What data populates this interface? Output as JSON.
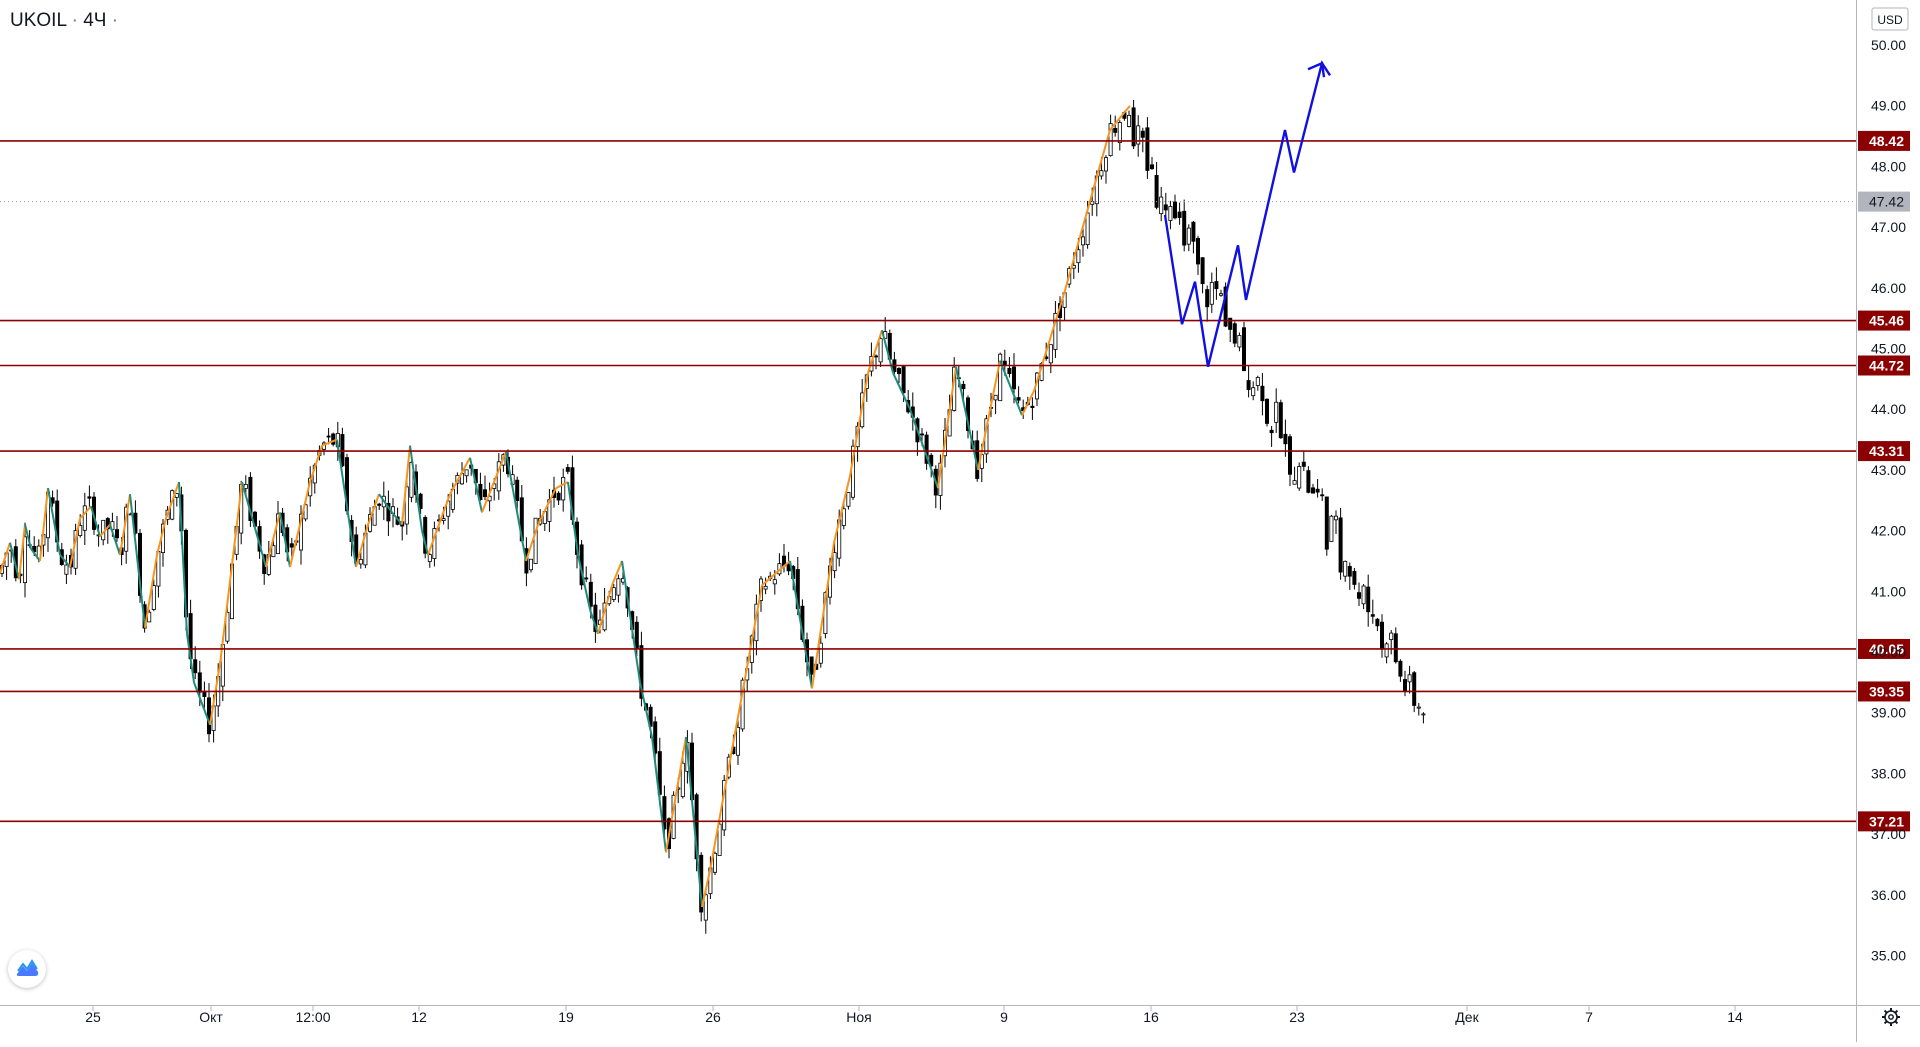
{
  "header": {
    "symbol": "UKOIL",
    "separator": "·",
    "interval": "4Ч",
    "dot": "·"
  },
  "currency": "USD",
  "settings_icon": "gear-icon",
  "logo_icon": "tradingview-logo-icon",
  "chart_data": {
    "type": "candlestick",
    "ylim": [
      34.6,
      50.6
    ],
    "y_ticks": [
      "35.00",
      "36.00",
      "37.00",
      "38.00",
      "39.00",
      "40.00",
      "41.00",
      "42.00",
      "43.00",
      "44.00",
      "45.00",
      "46.00",
      "47.00",
      "48.00",
      "49.00",
      "50.00"
    ],
    "x_ticks": [
      "25",
      "Окт",
      "12:00",
      "12",
      "19",
      "26",
      "Ноя",
      "9",
      "16",
      "23",
      "Дек",
      "7",
      "14"
    ],
    "current_price": "47.42",
    "levels": [
      "48.42",
      "45.46",
      "44.72",
      "43.31",
      "40.05",
      "39.35",
      "37.21"
    ],
    "zigzag_up_color": "#f7941d",
    "zigzag_down_color": "#1f8b7d",
    "level_color": "#8b0000",
    "candle_color": "#000000",
    "forecast_color": "#1010e0",
    "zigzag": [
      [
        0,
        41.3
      ],
      [
        10,
        41.8
      ],
      [
        19,
        41.2
      ],
      [
        25,
        42.1
      ],
      [
        31,
        41.7
      ],
      [
        40,
        41.5
      ],
      [
        48,
        42.7
      ],
      [
        60,
        41.6
      ],
      [
        70,
        41.4
      ],
      [
        80,
        42.2
      ],
      [
        91,
        42.4
      ],
      [
        100,
        41.9
      ],
      [
        110,
        42.1
      ],
      [
        120,
        41.6
      ],
      [
        130,
        42.6
      ],
      [
        145,
        40.4
      ],
      [
        157,
        41.6
      ],
      [
        166,
        42.2
      ],
      [
        179,
        42.8
      ],
      [
        187,
        40.3
      ],
      [
        194,
        39.5
      ],
      [
        210,
        38.8
      ],
      [
        220,
        39.8
      ],
      [
        242,
        42.8
      ],
      [
        266,
        41.4
      ],
      [
        280,
        42.3
      ],
      [
        290,
        41.4
      ],
      [
        310,
        42.8
      ],
      [
        322,
        43.4
      ],
      [
        337,
        43.5
      ],
      [
        356,
        41.4
      ],
      [
        368,
        42.1
      ],
      [
        379,
        42.6
      ],
      [
        392,
        42.3
      ],
      [
        402,
        42.1
      ],
      [
        410,
        43.4
      ],
      [
        422,
        42.0
      ],
      [
        428,
        41.6
      ],
      [
        450,
        42.6
      ],
      [
        470,
        43.2
      ],
      [
        482,
        42.3
      ],
      [
        506,
        43.3
      ],
      [
        526,
        41.5
      ],
      [
        538,
        42.1
      ],
      [
        556,
        42.7
      ],
      [
        568,
        42.8
      ],
      [
        578,
        41.6
      ],
      [
        590,
        40.7
      ],
      [
        598,
        40.3
      ],
      [
        612,
        41.1
      ],
      [
        622,
        41.5
      ],
      [
        640,
        39.5
      ],
      [
        652,
        38.6
      ],
      [
        666,
        36.7
      ],
      [
        686,
        38.6
      ],
      [
        702,
        35.8
      ],
      [
        710,
        36.4
      ],
      [
        762,
        41.1
      ],
      [
        790,
        41.5
      ],
      [
        812,
        39.4
      ],
      [
        834,
        41.8
      ],
      [
        850,
        42.9
      ],
      [
        868,
        44.6
      ],
      [
        882,
        45.3
      ],
      [
        893,
        44.6
      ],
      [
        910,
        44.0
      ],
      [
        938,
        42.7
      ],
      [
        956,
        44.7
      ],
      [
        978,
        43.0
      ],
      [
        1000,
        44.8
      ],
      [
        1022,
        43.9
      ],
      [
        1034,
        44.3
      ],
      [
        1064,
        45.9
      ],
      [
        1110,
        48.6
      ],
      [
        1130,
        49.0
      ]
    ],
    "forecast": [
      [
        1165,
        47.2
      ],
      [
        1182,
        45.4
      ],
      [
        1195,
        46.1
      ],
      [
        1208,
        44.7
      ],
      [
        1238,
        46.7
      ],
      [
        1246,
        45.8
      ],
      [
        1285,
        48.6
      ],
      [
        1294,
        47.9
      ],
      [
        1322,
        49.7
      ],
      [
        1330,
        49.5
      ]
    ]
  }
}
